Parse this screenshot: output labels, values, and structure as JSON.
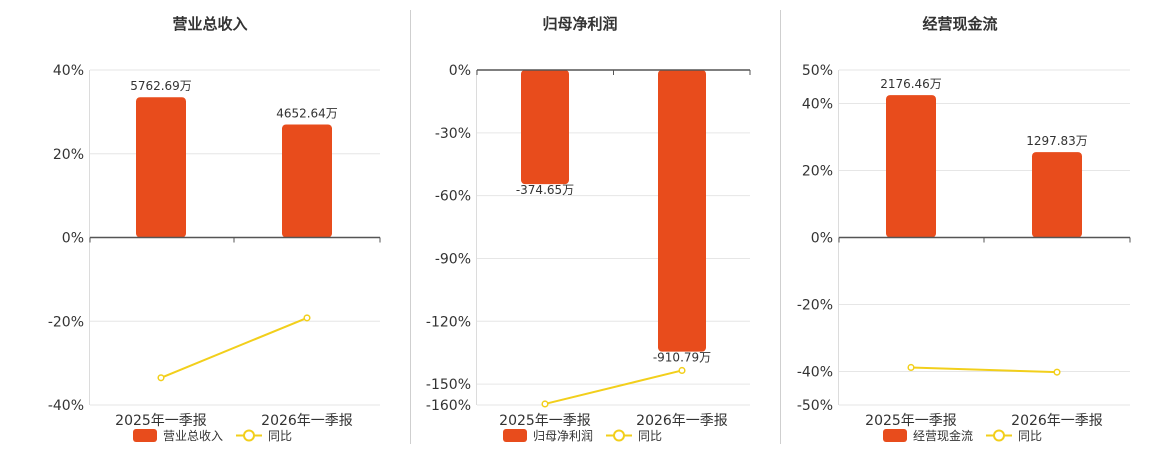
{
  "chart_data": [
    {
      "type": "bar",
      "title": "营业总收入",
      "categories": [
        "2025年一季报",
        "2026年一季报"
      ],
      "yaxis": {
        "min": -40,
        "max": 40,
        "ticks": [
          40,
          20,
          0,
          -20,
          -40
        ],
        "tick_labels": [
          "40%",
          "20%",
          "0%",
          "-20%",
          "-40%"
        ]
      },
      "bars": {
        "name": "营业总收入",
        "color": "#e84c1c",
        "values": [
          33.5,
          27.0
        ],
        "labels": [
          "5762.69万",
          "4652.64万"
        ]
      },
      "line": {
        "name": "同比",
        "color": "#f2cf1b",
        "values": [
          -33.5,
          -19.2
        ]
      },
      "legend": "bottom"
    },
    {
      "type": "bar",
      "title": "归母净利润",
      "categories": [
        "2025年一季报",
        "2026年一季报"
      ],
      "yaxis": {
        "min": -160,
        "max": 0,
        "ticks": [
          0,
          -30,
          -60,
          -90,
          -120,
          -150,
          -160
        ],
        "tick_labels": [
          "0%",
          "-30%",
          "-60%",
          "-90%",
          "-120%",
          "-150%",
          "-160%"
        ]
      },
      "bars": {
        "name": "归母净利润",
        "color": "#e84c1c",
        "values": [
          -54.5,
          -134.5
        ],
        "labels": [
          "-374.65万",
          "-910.79万"
        ]
      },
      "line": {
        "name": "同比",
        "color": "#f2cf1b",
        "values": [
          -159.5,
          -143.5
        ]
      },
      "legend": "bottom"
    },
    {
      "type": "bar",
      "title": "经营现金流",
      "categories": [
        "2025年一季报",
        "2026年一季报"
      ],
      "yaxis": {
        "min": -50,
        "max": 50,
        "ticks": [
          50,
          40,
          20,
          0,
          -20,
          -40,
          -50
        ],
        "tick_labels": [
          "50%",
          "40%",
          "20%",
          "0%",
          "-20%",
          "-40%",
          "-50%"
        ]
      },
      "bars": {
        "name": "经营现金流",
        "color": "#e84c1c",
        "values": [
          42.5,
          25.5
        ],
        "labels": [
          "2176.46万",
          "1297.83万"
        ]
      },
      "line": {
        "name": "同比",
        "color": "#f2cf1b",
        "values": [
          -38.8,
          -40.2
        ]
      },
      "legend": "bottom"
    }
  ]
}
